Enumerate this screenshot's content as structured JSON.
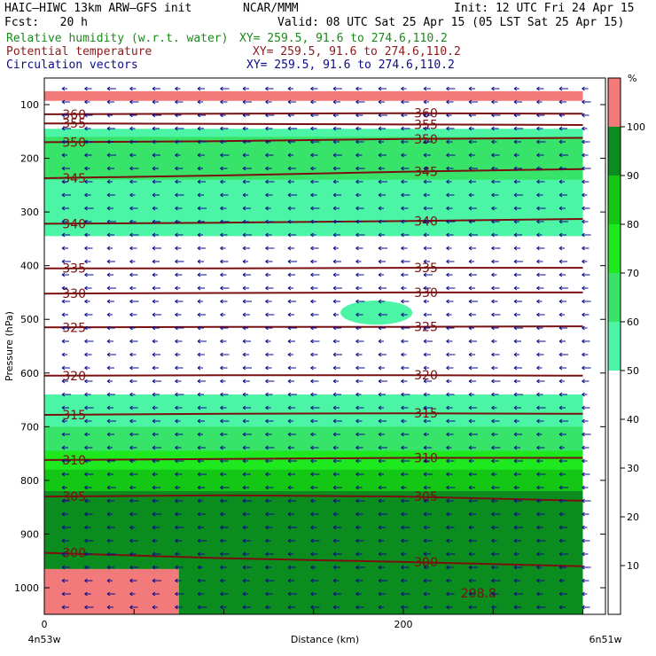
{
  "header": {
    "model": "HAIC–HIWC 13km ARW–GFS init",
    "center": "NCAR/MMM",
    "init": "Init: 12 UTC Fri 24 Apr 15",
    "fcst": "Fcst:   20 h",
    "valid": "Valid: 08 UTC Sat 25 Apr 15 (05 LST Sat 25 Apr 15)"
  },
  "fields": [
    {
      "name": "Relative humidity (w.r.t. water)",
      "xy": "XY= 259.5, 91.6 to 274.6,110.2",
      "color": "#1a8a1a"
    },
    {
      "name": "Potential temperature",
      "xy": "XY= 259.5, 91.6 to 274.6,110.2",
      "color": "#8b1a1a"
    },
    {
      "name": "Circulation vectors",
      "xy": "XY= 259.5, 91.6 to 274.6,110.2",
      "color": "#0a0a8b"
    }
  ],
  "chart_data": {
    "type": "area",
    "xlabel": "Distance (km)",
    "ylabel": "Pressure (hPa)",
    "x_range": [
      0,
      300
    ],
    "y_range": [
      1050,
      75
    ],
    "x_ticks": [
      0,
      200
    ],
    "y_ticks": [
      100,
      200,
      300,
      400,
      500,
      600,
      700,
      800,
      900,
      1000
    ],
    "x_end_labels": [
      "4n53w",
      "6n51w"
    ],
    "colorbar": {
      "unit": "%",
      "ticks": [
        10,
        20,
        30,
        40,
        50,
        60,
        70,
        80,
        90,
        100
      ],
      "bins": [
        {
          "lo": 50,
          "hi": 60,
          "color": "#4cf5a6"
        },
        {
          "lo": 60,
          "hi": 70,
          "color": "#38e36a"
        },
        {
          "lo": 70,
          "hi": 80,
          "color": "#1ee81e"
        },
        {
          "lo": 80,
          "hi": 90,
          "color": "#14c714"
        },
        {
          "lo": 90,
          "hi": 100,
          "color": "#0a8c1e"
        },
        {
          "lo": 100,
          "hi": 110,
          "color": "#f27a7a"
        }
      ]
    },
    "rh_regions": [
      {
        "bin": 100,
        "x": [
          0,
          300
        ],
        "p_top": 75,
        "p_bot": 93
      },
      {
        "bin": 50,
        "x": [
          0,
          300
        ],
        "p_top": 145,
        "p_bot": 345
      },
      {
        "bin": 60,
        "x": [
          0,
          300
        ],
        "p_top": 160,
        "p_bot": 240
      },
      {
        "bin": 50,
        "x": [
          165,
          205
        ],
        "p_top": 465,
        "p_bot": 510
      },
      {
        "bin": 50,
        "x": [
          0,
          300
        ],
        "p_top": 640,
        "p_bot": 1050
      },
      {
        "bin": 60,
        "x": [
          0,
          300
        ],
        "p_top": 700,
        "p_bot": 1050
      },
      {
        "bin": 70,
        "x": [
          0,
          300
        ],
        "p_top": 745,
        "p_bot": 1050
      },
      {
        "bin": 80,
        "x": [
          0,
          300
        ],
        "p_top": 780,
        "p_bot": 1050
      },
      {
        "bin": 90,
        "x": [
          0,
          300
        ],
        "p_top": 820,
        "p_bot": 1050
      },
      {
        "bin": 100,
        "x": [
          0,
          75
        ],
        "p_top": 965,
        "p_bot": 1050
      }
    ],
    "theta_contours": [
      {
        "value": 360,
        "p": [
          118,
          117,
          116,
          117
        ]
      },
      {
        "value": 355,
        "p": [
          135,
          136,
          137,
          138
        ]
      },
      {
        "value": 350,
        "p": [
          170,
          168,
          164,
          162
        ]
      },
      {
        "value": 345,
        "p": [
          237,
          232,
          225,
          220
        ]
      },
      {
        "value": 340,
        "p": [
          322,
          320,
          317,
          313
        ]
      },
      {
        "value": 335,
        "p": [
          405,
          405,
          404,
          404
        ]
      },
      {
        "value": 330,
        "p": [
          452,
          451,
          450,
          450
        ]
      },
      {
        "value": 325,
        "p": [
          515,
          514,
          514,
          513
        ]
      },
      {
        "value": 320,
        "p": [
          605,
          604,
          604,
          605
        ]
      },
      {
        "value": 315,
        "p": [
          678,
          676,
          675,
          676
        ]
      },
      {
        "value": 310,
        "p": [
          762,
          760,
          758,
          758
        ]
      },
      {
        "value": 305,
        "p": [
          830,
          828,
          830,
          838
        ]
      },
      {
        "value": 300,
        "p": [
          935,
          945,
          952,
          960
        ]
      }
    ],
    "theta_extra_label": "298.8",
    "vectors": {
      "u": -1,
      "v": 0
    }
  }
}
